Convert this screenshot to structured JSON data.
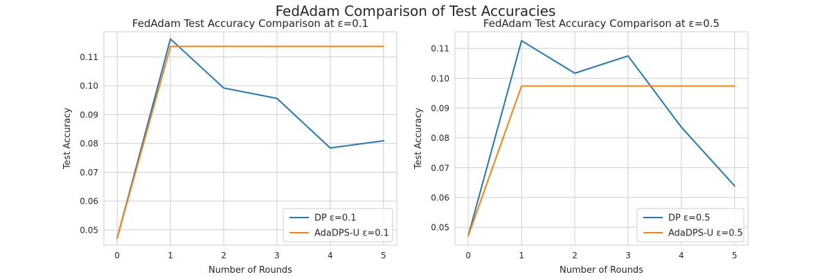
{
  "figure": {
    "suptitle": "FedAdam Comparison of Test Accuracies"
  },
  "chart_data": [
    {
      "type": "line",
      "title": "FedAdam Test Accuracy Comparison at ε=0.1",
      "xlabel": "Number of Rounds",
      "ylabel": "Test Accuracy",
      "x": [
        0,
        1,
        2,
        3,
        4,
        5
      ],
      "xticks": [
        0,
        1,
        2,
        3,
        4,
        5
      ],
      "yticks": [
        0.05,
        0.06,
        0.07,
        0.08,
        0.09,
        0.1,
        0.11
      ],
      "ytick_labels": [
        "0.05",
        "0.06",
        "0.07",
        "0.08",
        "0.09",
        "0.10",
        "0.11"
      ],
      "xlim": [
        -0.25,
        5.25
      ],
      "ylim": [
        0.0447,
        0.1187
      ],
      "grid": true,
      "legend_position": "lower-right",
      "series": [
        {
          "name": "DP ε=0.1",
          "color": "#1f77b4",
          "values": [
            0.0472,
            0.1162,
            0.0992,
            0.0956,
            0.0784,
            0.0809
          ]
        },
        {
          "name": "AdaDPS-U ε=0.1",
          "color": "#ff7f0e",
          "values": [
            0.0472,
            0.1136,
            0.1136,
            0.1136,
            0.1136,
            0.1136
          ]
        }
      ]
    },
    {
      "type": "line",
      "title": "FedAdam Test Accuracy Comparison at ε=0.5",
      "xlabel": "Number of Rounds",
      "ylabel": "Test Accuracy",
      "x": [
        0,
        1,
        2,
        3,
        4,
        5
      ],
      "xticks": [
        0,
        1,
        2,
        3,
        4,
        5
      ],
      "yticks": [
        0.05,
        0.06,
        0.07,
        0.08,
        0.09,
        0.1,
        0.11
      ],
      "ytick_labels": [
        "0.05",
        "0.06",
        "0.07",
        "0.08",
        "0.09",
        "0.10",
        "0.11"
      ],
      "xlim": [
        -0.25,
        5.25
      ],
      "ylim": [
        0.044,
        0.1156
      ],
      "grid": true,
      "legend_position": "lower-right",
      "series": [
        {
          "name": "DP ε=0.5",
          "color": "#1f77b4",
          "values": [
            0.0472,
            0.1126,
            0.1017,
            0.1075,
            0.0836,
            0.0639
          ]
        },
        {
          "name": "AdaDPS-U ε=0.5",
          "color": "#ff7f0e",
          "values": [
            0.0472,
            0.0974,
            0.0974,
            0.0974,
            0.0974,
            0.0974
          ]
        }
      ]
    }
  ]
}
